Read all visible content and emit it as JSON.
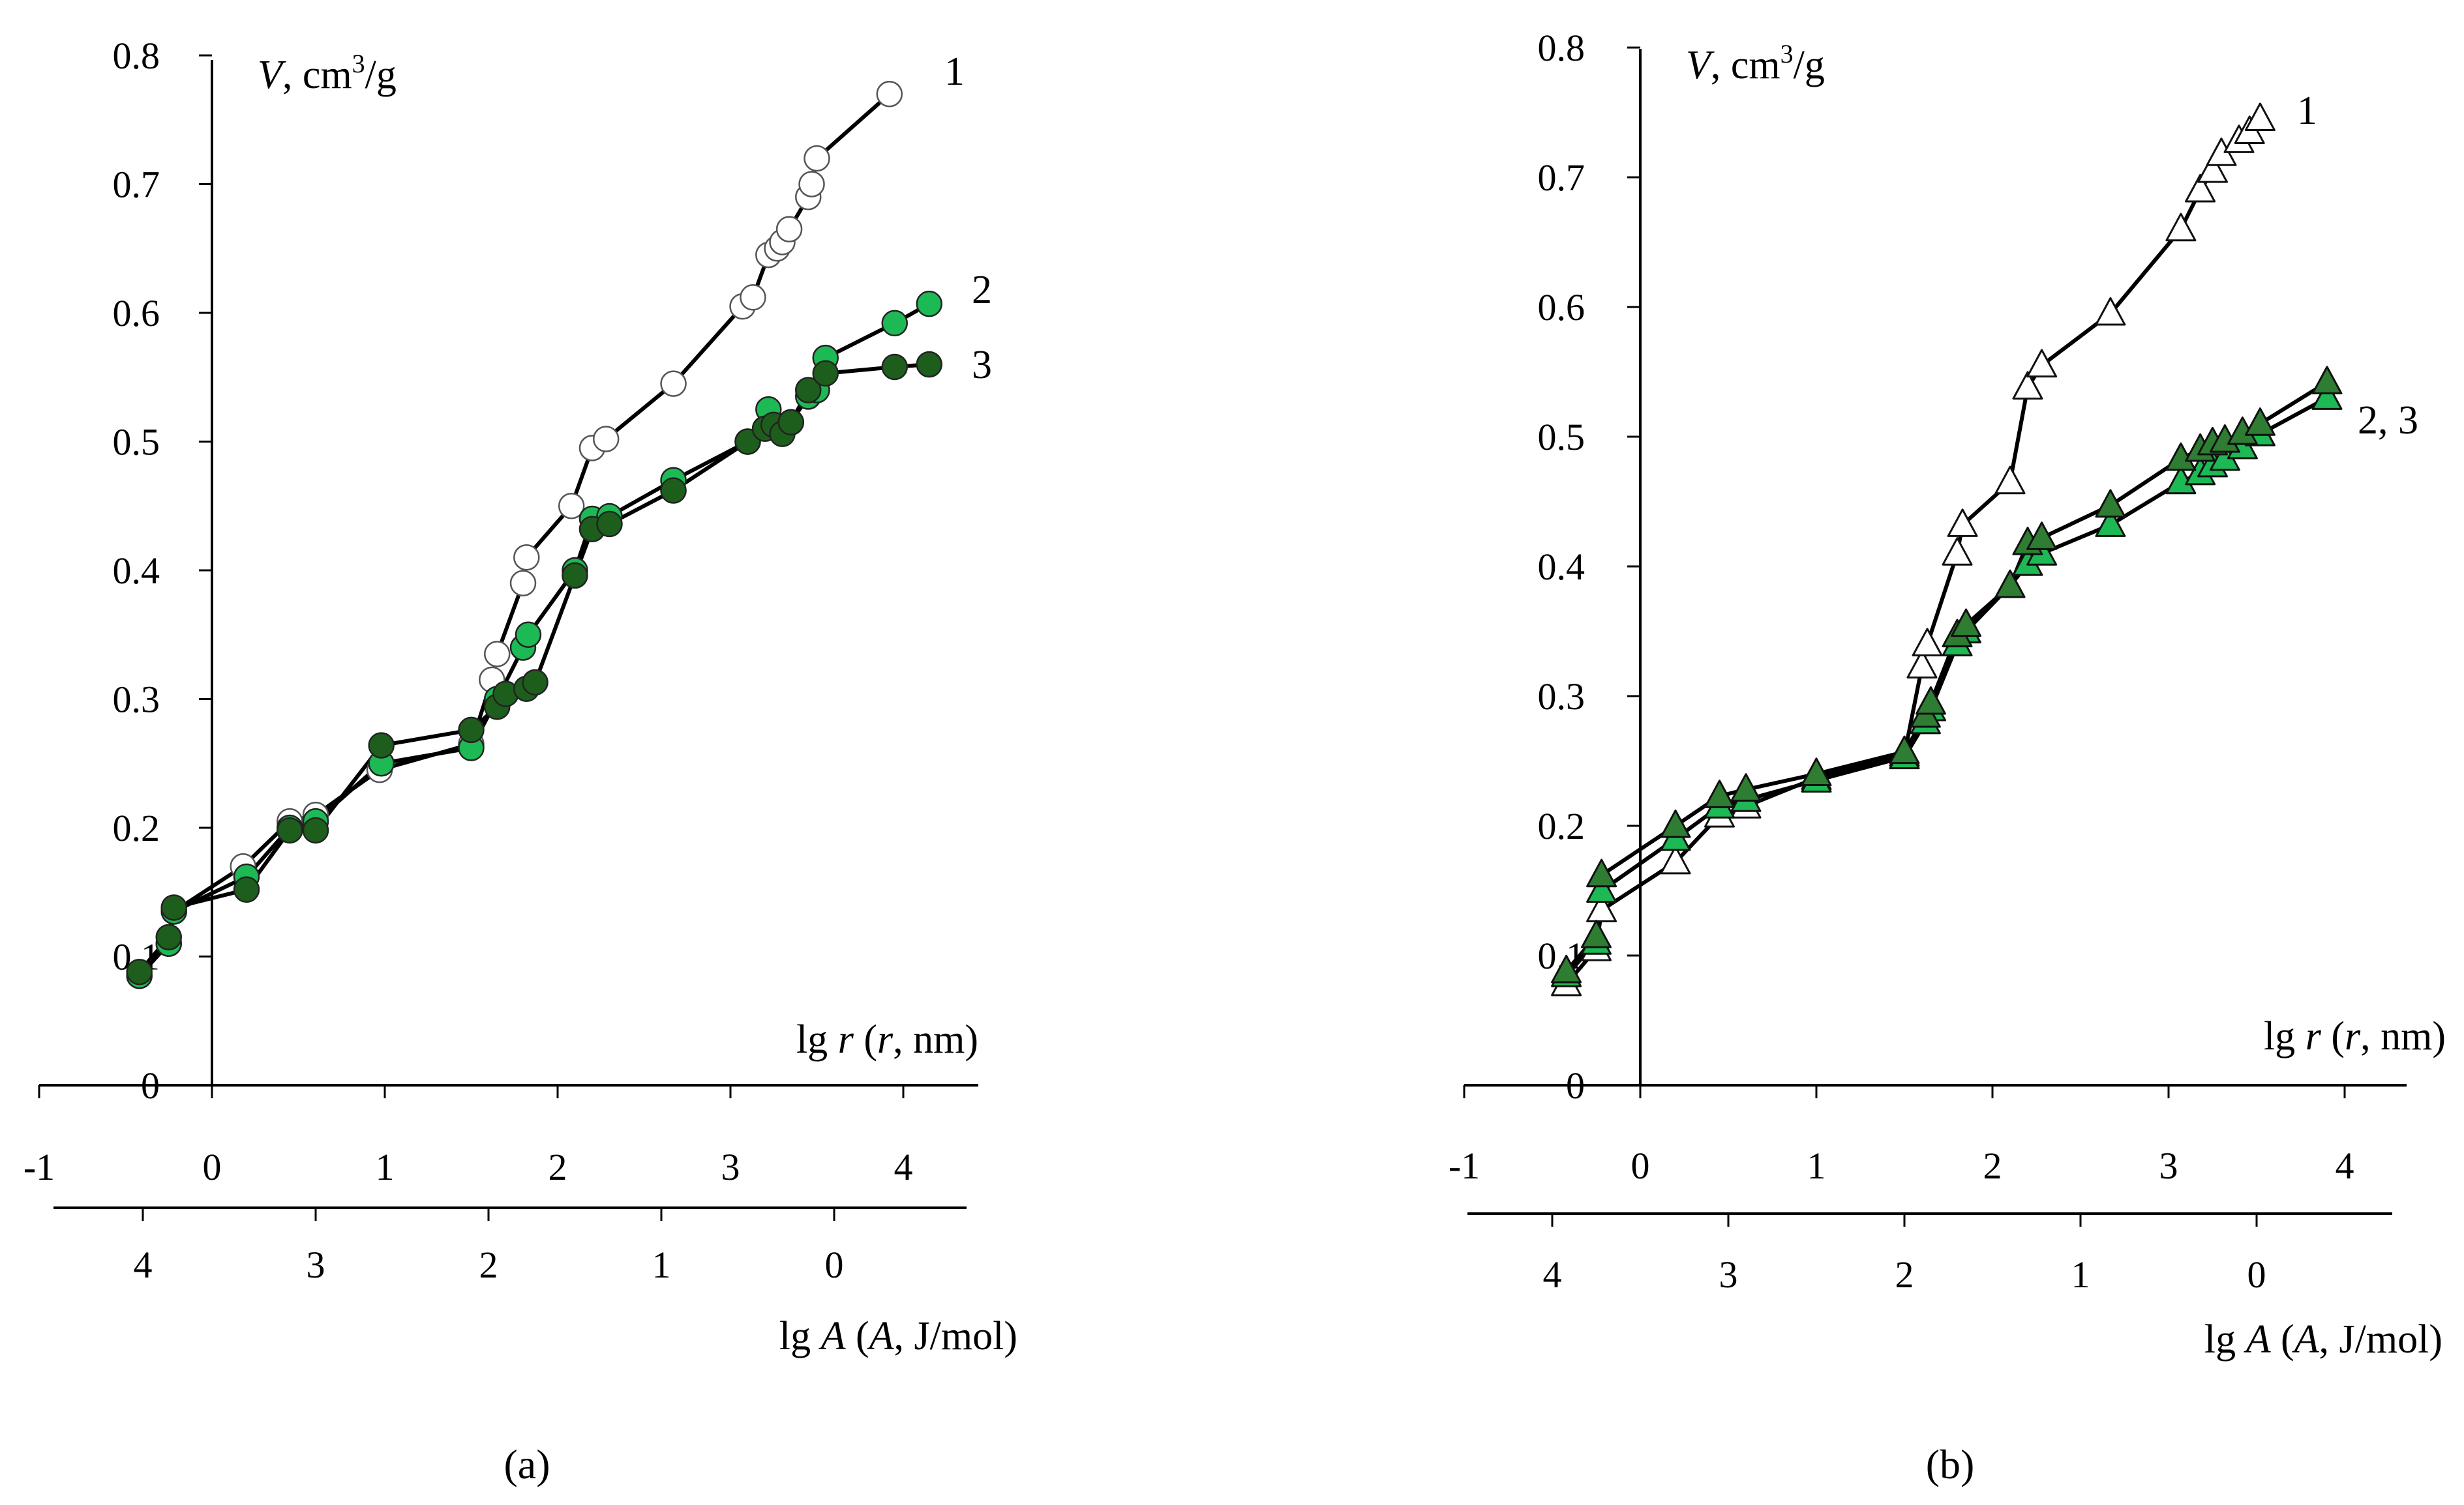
{
  "chart_data": [
    {
      "panel_label": "(a)",
      "type": "line",
      "marker": "circle",
      "x_axis": {
        "label_pre": "lg ",
        "label_var": "r",
        "label_mid": " (",
        "label_var2": "r",
        "label_post": ", nm)",
        "ticks": [
          -1,
          0,
          1,
          2,
          3,
          4
        ],
        "tick_labels": [
          "-1",
          "0",
          "1",
          "2",
          "3",
          "4"
        ],
        "range": [
          -1,
          4.5
        ]
      },
      "x2_axis": {
        "label_pre": "lg ",
        "label_var": "A",
        "label_mid": " (",
        "label_var2": "A",
        "label_post": ", J/mol)",
        "ticks": [
          -0.4,
          0.6,
          1.6,
          2.6,
          3.6
        ],
        "tick_labels": [
          "4",
          "3",
          "2",
          "1",
          "0"
        ]
      },
      "y_axis": {
        "label_var": "V",
        "label_unit": ", cm",
        "label_sup": "3",
        "label_end": "/g",
        "ticks": [
          0,
          0.1,
          0.2,
          0.3,
          0.4,
          0.5,
          0.6,
          0.7,
          0.8
        ],
        "tick_labels": [
          "0",
          "0.1",
          "0.2",
          "0.3",
          "0.4",
          "0.5",
          "0.6",
          "0.7",
          "0.8"
        ],
        "range": [
          0,
          0.8
        ]
      },
      "series": [
        {
          "name": "1",
          "label": "1",
          "fill": "#ffffff",
          "x": [
            -0.42,
            -0.25,
            -0.22,
            0.18,
            0.45,
            0.6,
            0.97,
            1.5,
            1.62,
            1.65,
            1.8,
            1.82,
            2.08,
            2.2,
            2.28,
            2.67,
            3.07,
            3.13,
            3.22,
            3.27,
            3.3,
            3.34,
            3.45,
            3.47,
            3.5,
            3.92
          ],
          "y": [
            0.085,
            0.11,
            0.135,
            0.17,
            0.205,
            0.21,
            0.245,
            0.265,
            0.315,
            0.335,
            0.39,
            0.41,
            0.45,
            0.495,
            0.502,
            0.545,
            0.605,
            0.612,
            0.645,
            0.65,
            0.655,
            0.665,
            0.69,
            0.7,
            0.72,
            0.77
          ]
        },
        {
          "name": "2",
          "label": "2",
          "fill": "#1db954",
          "x": [
            -0.42,
            -0.25,
            -0.22,
            0.2,
            0.45,
            0.6,
            0.98,
            1.5,
            1.65,
            1.8,
            1.83,
            2.1,
            2.2,
            2.3,
            2.67,
            3.1,
            3.22,
            3.3,
            3.35,
            3.45,
            3.5,
            3.55,
            3.95,
            4.15
          ],
          "y": [
            0.085,
            0.11,
            0.135,
            0.162,
            0.2,
            0.205,
            0.25,
            0.262,
            0.3,
            0.34,
            0.35,
            0.4,
            0.44,
            0.442,
            0.47,
            0.5,
            0.525,
            0.51,
            0.515,
            0.535,
            0.54,
            0.565,
            0.592,
            0.607
          ]
        },
        {
          "name": "3",
          "label": "3",
          "fill": "#1d5e1d",
          "x": [
            -0.42,
            -0.25,
            -0.22,
            0.2,
            0.45,
            0.6,
            0.98,
            1.5,
            1.65,
            1.7,
            1.82,
            1.87,
            2.1,
            2.2,
            2.3,
            2.67,
            3.1,
            3.2,
            3.25,
            3.3,
            3.35,
            3.45,
            3.55,
            3.95,
            4.15
          ],
          "y": [
            0.088,
            0.115,
            0.138,
            0.152,
            0.198,
            0.198,
            0.264,
            0.276,
            0.294,
            0.304,
            0.308,
            0.313,
            0.396,
            0.432,
            0.436,
            0.462,
            0.5,
            0.51,
            0.513,
            0.506,
            0.515,
            0.54,
            0.553,
            0.558,
            0.56
          ]
        }
      ]
    },
    {
      "panel_label": "(b)",
      "type": "line",
      "marker": "triangle",
      "x_axis": {
        "label_pre": "lg ",
        "label_var": "r",
        "label_mid": " (",
        "label_var2": "r",
        "label_post": ", nm)",
        "ticks": [
          -1,
          0,
          1,
          2,
          3,
          4
        ],
        "tick_labels": [
          "-1",
          "0",
          "1",
          "2",
          "3",
          "4"
        ],
        "range": [
          -1,
          4.5
        ]
      },
      "x2_axis": {
        "label_pre": "lg ",
        "label_var": "A",
        "label_mid": " (",
        "label_var2": "A",
        "label_post": ", J/mol)",
        "ticks": [
          -0.5,
          0.5,
          1.5,
          2.5,
          3.5
        ],
        "tick_labels": [
          "4",
          "3",
          "2",
          "1",
          "0"
        ]
      },
      "y_axis": {
        "label_var": "V",
        "label_unit": ", cm",
        "label_sup": "3",
        "label_end": "/g",
        "ticks": [
          0,
          0.1,
          0.2,
          0.3,
          0.4,
          0.5,
          0.6,
          0.7,
          0.8
        ],
        "tick_labels": [
          "0",
          "0.1",
          "0.2",
          "0.3",
          "0.4",
          "0.5",
          "0.6",
          "0.7",
          "0.8"
        ],
        "range": [
          0,
          0.8
        ]
      },
      "series": [
        {
          "name": "1",
          "label": "1",
          "fill": "#ffffff",
          "x": [
            -0.42,
            -0.25,
            -0.22,
            0.2,
            0.45,
            0.6,
            1.0,
            1.5,
            1.6,
            1.63,
            1.8,
            1.83,
            2.1,
            2.2,
            2.28,
            2.67,
            3.07,
            3.18,
            3.25,
            3.3,
            3.4,
            3.46,
            3.52
          ],
          "y": [
            0.078,
            0.105,
            0.135,
            0.172,
            0.208,
            0.215,
            0.237,
            0.255,
            0.323,
            0.34,
            0.41,
            0.432,
            0.465,
            0.538,
            0.555,
            0.595,
            0.66,
            0.69,
            0.705,
            0.718,
            0.728,
            0.735,
            0.745
          ]
        },
        {
          "name": "2",
          "label": "2, 3",
          "fill": "#1db954",
          "x": [
            -0.42,
            -0.25,
            -0.22,
            0.2,
            0.45,
            0.6,
            1.0,
            1.5,
            1.62,
            1.65,
            1.8,
            1.85,
            2.1,
            2.2,
            2.28,
            2.67,
            3.07,
            3.18,
            3.25,
            3.32,
            3.42,
            3.52,
            3.9
          ],
          "y": [
            0.085,
            0.11,
            0.15,
            0.19,
            0.215,
            0.22,
            0.235,
            0.253,
            0.28,
            0.29,
            0.34,
            0.35,
            0.385,
            0.402,
            0.41,
            0.432,
            0.465,
            0.472,
            0.478,
            0.483,
            0.492,
            0.502,
            0.53
          ]
        },
        {
          "name": "3",
          "label": "",
          "fill": "#2e7d32",
          "x": [
            -0.42,
            -0.25,
            -0.22,
            0.2,
            0.45,
            0.6,
            1.0,
            1.5,
            1.62,
            1.65,
            1.8,
            1.85,
            2.1,
            2.2,
            2.28,
            2.67,
            3.07,
            3.18,
            3.25,
            3.32,
            3.42,
            3.52,
            3.9
          ],
          "y": [
            0.088,
            0.115,
            0.162,
            0.2,
            0.223,
            0.228,
            0.24,
            0.257,
            0.285,
            0.295,
            0.347,
            0.355,
            0.385,
            0.418,
            0.422,
            0.447,
            0.483,
            0.49,
            0.495,
            0.497,
            0.503,
            0.51,
            0.542
          ]
        }
      ]
    }
  ]
}
